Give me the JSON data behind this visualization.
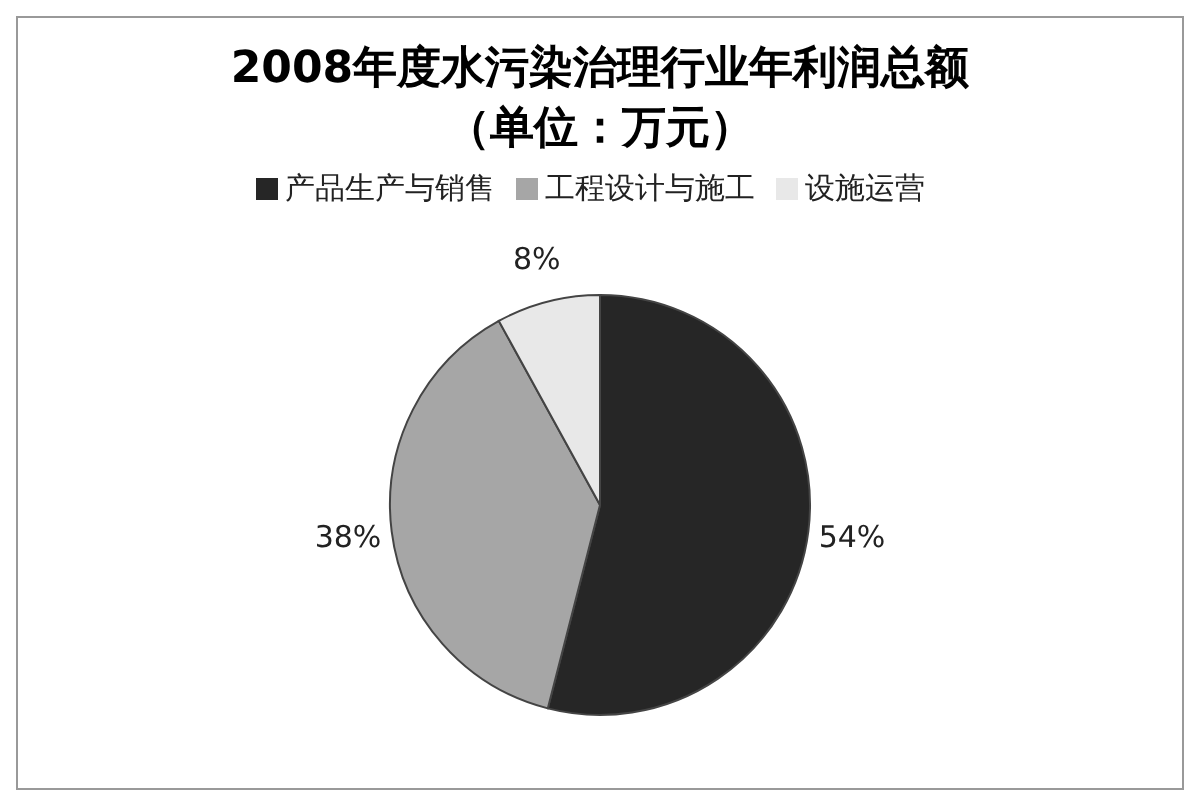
{
  "chart_data": {
    "type": "pie",
    "title": "2008年度水污染治理行业年利润总额",
    "subtitle": "（单位：万元）",
    "categories": [
      "产品生产与销售",
      "工程设计与施工",
      "设施运营"
    ],
    "values": [
      54,
      38,
      8
    ],
    "colors": [
      "#262626",
      "#a6a6a6",
      "#e8e8e8"
    ],
    "value_labels": [
      "54%",
      "38%",
      "8%"
    ],
    "legend": "top"
  }
}
